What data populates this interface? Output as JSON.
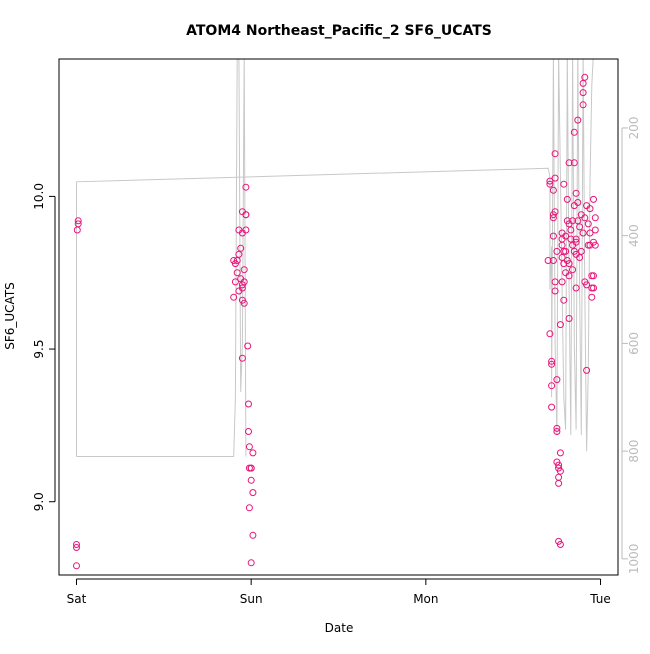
{
  "chart_data": {
    "type": "scatter",
    "title": "ATOM4 Northeast_Pacific_2 SF6_UCATS",
    "xlabel": "Date",
    "ylabel": "SF6_UCATS",
    "x_unit": "days",
    "x_ticks": [
      {
        "value": 0,
        "label": "Sat"
      },
      {
        "value": 1,
        "label": "Sun"
      },
      {
        "value": 2,
        "label": "Mon"
      },
      {
        "value": 3,
        "label": "Tue"
      }
    ],
    "xlim": [
      -0.1,
      3.1
    ],
    "ylim": [
      8.76,
      10.45
    ],
    "y_ticks": [
      {
        "value": 9.0,
        "label": "9.0"
      },
      {
        "value": 9.5,
        "label": "9.5"
      },
      {
        "value": 10.0,
        "label": "10.0"
      }
    ],
    "right_axis": {
      "ticks": [
        {
          "value": 200,
          "label": "200"
        },
        {
          "value": 400,
          "label": "400"
        },
        {
          "value": 600,
          "label": "600"
        },
        {
          "value": 800,
          "label": "800"
        },
        {
          "value": 1000,
          "label": "1000"
        }
      ],
      "range": [
        1030,
        72
      ],
      "color": "#bbbbbb"
    },
    "marker_color": "#e8157a",
    "line_color": "#c8c8c8",
    "series": [
      {
        "points": [
          [
            0.01,
            9.92
          ],
          [
            0.01,
            9.91
          ],
          [
            0.005,
            9.89
          ],
          [
            0.0,
            8.86
          ],
          [
            0.0,
            8.85
          ],
          [
            0.0,
            8.79
          ],
          [
            0.9,
            9.67
          ],
          [
            0.9,
            9.79
          ],
          [
            0.91,
            9.78
          ],
          [
            0.91,
            9.72
          ],
          [
            0.92,
            9.79
          ],
          [
            0.92,
            9.75
          ],
          [
            0.93,
            9.69
          ],
          [
            0.93,
            9.81
          ],
          [
            0.93,
            9.89
          ],
          [
            0.94,
            9.83
          ],
          [
            0.94,
            9.73
          ],
          [
            0.95,
            9.95
          ],
          [
            0.95,
            9.88
          ],
          [
            0.95,
            9.71
          ],
          [
            0.95,
            9.47
          ],
          [
            0.95,
            9.66
          ],
          [
            0.95,
            9.7
          ],
          [
            0.96,
            9.76
          ],
          [
            0.96,
            9.65
          ],
          [
            0.96,
            9.72
          ],
          [
            0.97,
            9.94
          ],
          [
            0.97,
            9.89
          ],
          [
            0.97,
            10.03
          ],
          [
            0.97,
            9.94
          ],
          [
            0.98,
            9.51
          ],
          [
            0.985,
            9.32
          ],
          [
            0.985,
            9.23
          ],
          [
            0.99,
            9.18
          ],
          [
            0.99,
            9.11
          ],
          [
            0.99,
            8.98
          ],
          [
            1.0,
            9.11
          ],
          [
            1.0,
            9.07
          ],
          [
            1.0,
            9.11
          ],
          [
            1.0,
            8.8
          ],
          [
            1.01,
            9.16
          ],
          [
            1.01,
            9.03
          ],
          [
            1.01,
            8.89
          ],
          [
            2.7,
            9.79
          ],
          [
            2.71,
            10.05
          ],
          [
            2.71,
            10.04
          ],
          [
            2.71,
            9.55
          ],
          [
            2.72,
            9.46
          ],
          [
            2.72,
            9.45
          ],
          [
            2.72,
            9.38
          ],
          [
            2.72,
            9.31
          ],
          [
            2.73,
            9.94
          ],
          [
            2.73,
            9.93
          ],
          [
            2.73,
            9.87
          ],
          [
            2.73,
            9.79
          ],
          [
            2.73,
            10.02
          ],
          [
            2.74,
            10.06
          ],
          [
            2.74,
            10.14
          ],
          [
            2.74,
            9.95
          ],
          [
            2.74,
            9.72
          ],
          [
            2.74,
            9.69
          ],
          [
            2.75,
            9.82
          ],
          [
            2.75,
            9.4
          ],
          [
            2.75,
            9.24
          ],
          [
            2.75,
            9.23
          ],
          [
            2.75,
            9.13
          ],
          [
            2.76,
            9.12
          ],
          [
            2.76,
            9.11
          ],
          [
            2.76,
            9.08
          ],
          [
            2.76,
            9.06
          ],
          [
            2.76,
            8.87
          ],
          [
            2.77,
            8.86
          ],
          [
            2.77,
            9.16
          ],
          [
            2.77,
            9.1
          ],
          [
            2.77,
            9.58
          ],
          [
            2.78,
            9.72
          ],
          [
            2.78,
            9.8
          ],
          [
            2.78,
            9.84
          ],
          [
            2.78,
            9.88
          ],
          [
            2.78,
            9.86
          ],
          [
            2.79,
            9.82
          ],
          [
            2.79,
            9.78
          ],
          [
            2.79,
            9.66
          ],
          [
            2.79,
            10.04
          ],
          [
            2.8,
            9.82
          ],
          [
            2.8,
            9.87
          ],
          [
            2.8,
            9.75
          ],
          [
            2.81,
            9.92
          ],
          [
            2.81,
            9.99
          ],
          [
            2.81,
            9.79
          ],
          [
            2.82,
            9.91
          ],
          [
            2.82,
            9.78
          ],
          [
            2.82,
            9.6
          ],
          [
            2.82,
            9.74
          ],
          [
            2.82,
            10.11
          ],
          [
            2.83,
            9.89
          ],
          [
            2.83,
            9.86
          ],
          [
            2.84,
            9.76
          ],
          [
            2.84,
            9.84
          ],
          [
            2.84,
            9.92
          ],
          [
            2.85,
            10.11
          ],
          [
            2.85,
            10.21
          ],
          [
            2.85,
            9.97
          ],
          [
            2.85,
            9.82
          ],
          [
            2.86,
            9.7
          ],
          [
            2.86,
            9.81
          ],
          [
            2.86,
            9.86
          ],
          [
            2.86,
            10.01
          ],
          [
            2.86,
            9.85
          ],
          [
            2.87,
            10.25
          ],
          [
            2.87,
            9.92
          ],
          [
            2.87,
            9.98
          ],
          [
            2.88,
            9.9
          ],
          [
            2.88,
            9.8
          ],
          [
            2.89,
            9.94
          ],
          [
            2.89,
            9.82
          ],
          [
            2.9,
            9.88
          ],
          [
            2.9,
            10.37
          ],
          [
            2.9,
            10.34
          ],
          [
            2.9,
            10.3
          ],
          [
            2.91,
            10.39
          ],
          [
            2.91,
            9.93
          ],
          [
            2.91,
            9.72
          ],
          [
            2.92,
            9.71
          ],
          [
            2.92,
            9.43
          ],
          [
            2.92,
            9.97
          ],
          [
            2.93,
            9.91
          ],
          [
            2.93,
            9.84
          ],
          [
            2.94,
            9.88
          ],
          [
            2.94,
            9.96
          ],
          [
            2.94,
            9.84
          ],
          [
            2.95,
            9.74
          ],
          [
            2.95,
            9.7
          ],
          [
            2.95,
            9.67
          ],
          [
            2.96,
            9.74
          ],
          [
            2.96,
            9.7
          ],
          [
            2.96,
            9.85
          ],
          [
            2.96,
            9.99
          ],
          [
            2.97,
            9.93
          ],
          [
            2.97,
            9.89
          ],
          [
            2.97,
            9.84
          ]
        ]
      }
    ],
    "altitude_trace": [
      [
        0.0,
        810
      ],
      [
        0.0,
        300
      ],
      [
        2.7,
        275
      ],
      [
        2.71,
        290
      ],
      [
        2.71,
        500
      ],
      [
        2.72,
        420
      ],
      [
        2.72,
        700
      ],
      [
        2.73,
        60
      ],
      [
        2.74,
        600
      ],
      [
        2.75,
        770
      ],
      [
        2.76,
        60
      ],
      [
        2.78,
        500
      ],
      [
        2.79,
        700
      ],
      [
        2.8,
        760
      ],
      [
        2.81,
        60
      ],
      [
        2.82,
        500
      ],
      [
        2.83,
        770
      ],
      [
        2.84,
        60
      ],
      [
        2.85,
        600
      ],
      [
        2.86,
        760
      ],
      [
        2.87,
        60
      ],
      [
        2.88,
        500
      ],
      [
        2.89,
        770
      ],
      [
        2.9,
        60
      ],
      [
        2.91,
        500
      ],
      [
        2.92,
        800
      ],
      [
        2.93,
        650
      ],
      [
        2.94,
        300
      ],
      [
        2.95,
        120
      ],
      [
        2.96,
        60
      ],
      null,
      [
        0.0,
        810
      ],
      [
        0.9,
        810
      ],
      [
        0.91,
        700
      ],
      [
        0.92,
        60
      ],
      [
        0.93,
        60
      ],
      [
        0.94,
        690
      ],
      [
        0.95,
        600
      ],
      [
        0.96,
        60
      ],
      [
        0.97,
        810
      ]
    ]
  }
}
